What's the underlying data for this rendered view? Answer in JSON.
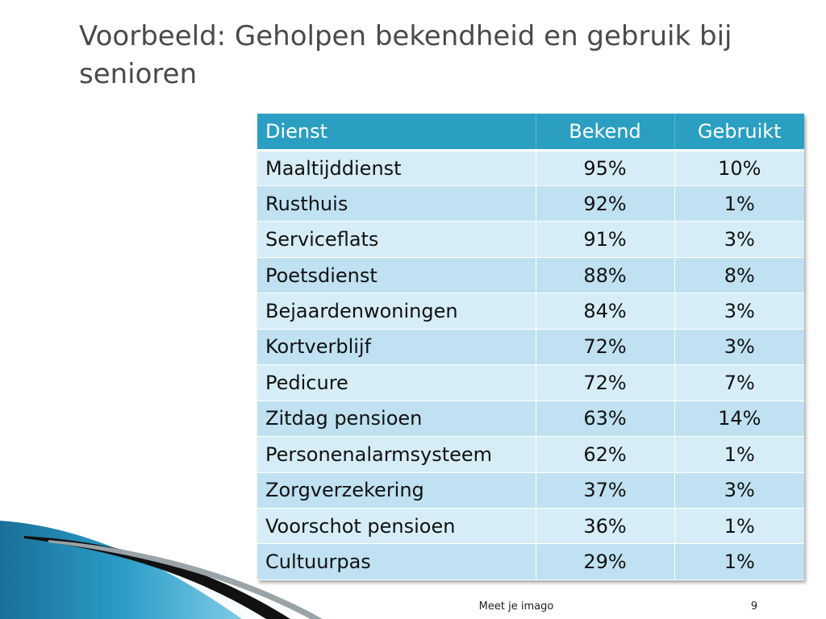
{
  "slide": {
    "title": "Voorbeeld: Geholpen bekendheid en gebruik bij senioren",
    "footer_text": "Meet je imago",
    "page_number": "9"
  },
  "table": {
    "headers": [
      "Dienst",
      "Bekend",
      "Gebruikt"
    ],
    "rows": [
      [
        "Maaltijddienst",
        "95%",
        "10%"
      ],
      [
        "Rusthuis",
        "92%",
        "1%"
      ],
      [
        "Serviceflats",
        "91%",
        "3%"
      ],
      [
        "Poetsdienst",
        "88%",
        "8%"
      ],
      [
        "Bejaardenwoningen",
        "84%",
        "3%"
      ],
      [
        "Kortverblijf",
        "72%",
        "3%"
      ],
      [
        "Pedicure",
        "72%",
        "7%"
      ],
      [
        "Zitdag pensioen",
        "63%",
        "14%"
      ],
      [
        "Personenalarmsysteem",
        "62%",
        "1%"
      ],
      [
        "Zorgverzekering",
        "37%",
        "3%"
      ],
      [
        "Voorschot pensioen",
        "36%",
        "1%"
      ],
      [
        "Cultuurpas",
        "29%",
        "1%"
      ]
    ]
  },
  "colors": {
    "header_bg": "#2b9fc1",
    "row_light": "#d6edf7",
    "row_dark": "#bfe1f1",
    "accent_wave": "#1d8fb8"
  }
}
